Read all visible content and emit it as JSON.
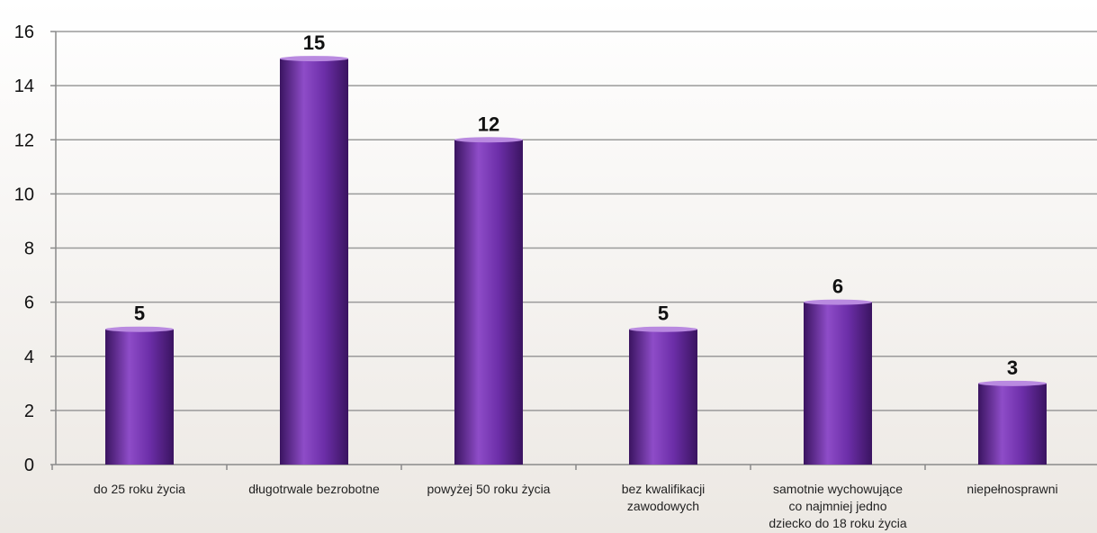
{
  "chart_data": {
    "type": "bar",
    "categories": [
      [
        "do 25 roku życia"
      ],
      [
        "długotrwale bezrobotne"
      ],
      [
        "powyżej 50 roku życia"
      ],
      [
        "bez kwalifikacji",
        "zawodowych"
      ],
      [
        "samotnie wychowujące",
        "co najmniej jedno",
        "dziecko do 18 roku życia"
      ],
      [
        "niepełnosprawni"
      ]
    ],
    "values": [
      5,
      15,
      12,
      5,
      6,
      3
    ],
    "ylim": [
      0,
      16
    ],
    "yticks": [
      0,
      2,
      4,
      6,
      8,
      10,
      12,
      14,
      16
    ],
    "grid": true,
    "legend": "none",
    "colors": {
      "bar_dark": "#3a1460",
      "bar_mid": "#6c2ea8",
      "bar_light": "#8e4cc8",
      "bar_top": "#b98ae0",
      "grid": "#9a9a9a",
      "axis": "#8a8a8a",
      "background_top": "#ffffff",
      "background_bottom": "#ece8e3"
    }
  }
}
